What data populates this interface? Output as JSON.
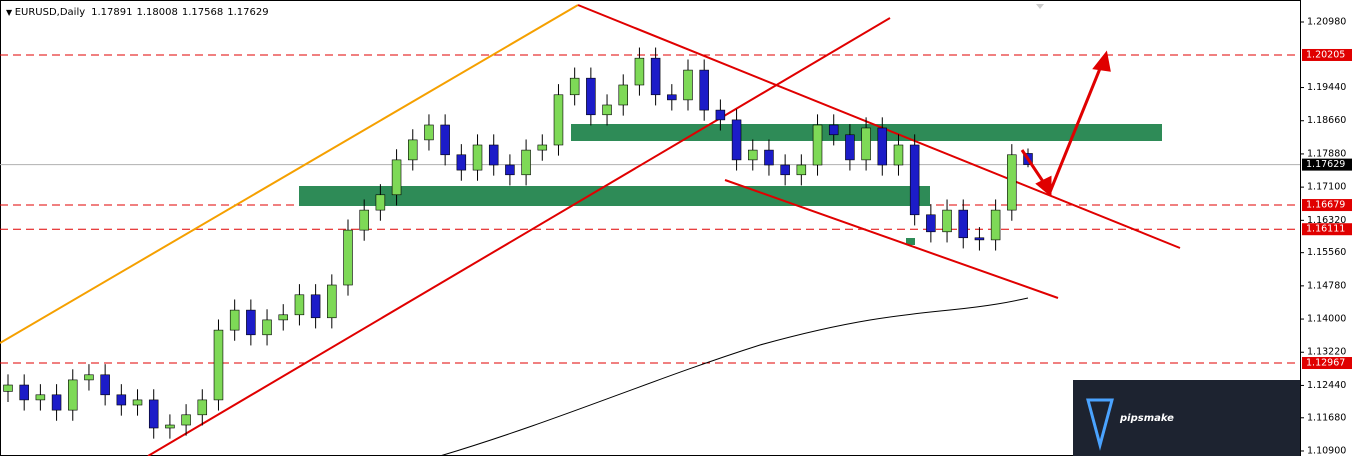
{
  "chart_data": {
    "type": "candlestick",
    "title": "EURUSD,Daily",
    "header_ohlc": [
      1.17891,
      1.18008,
      1.17568,
      1.17629
    ],
    "up_color": "#7ed957",
    "down_color": "#1c1cc8",
    "level_color": "#e00000",
    "ylim": [
      1.10782,
      1.21497
    ],
    "yticks": [
      {
        "value": 1.2098,
        "label": "1.20980"
      },
      {
        "value": 1.1944,
        "label": "1.19440"
      },
      {
        "value": 1.1866,
        "label": "1.18660"
      },
      {
        "value": 1.1788,
        "label": "1.17880"
      },
      {
        "value": 1.171,
        "label": "1.17100"
      },
      {
        "value": 1.1632,
        "label": "1.16320"
      },
      {
        "value": 1.1556,
        "label": "1.15560"
      },
      {
        "value": 1.1478,
        "label": "1.14780"
      },
      {
        "value": 1.14,
        "label": "1.14000"
      },
      {
        "value": 1.1322,
        "label": "1.13220"
      },
      {
        "value": 1.1244,
        "label": "1.12440"
      },
      {
        "value": 1.1168,
        "label": "1.11680"
      },
      {
        "value": 1.109,
        "label": "1.10900"
      }
    ],
    "levels": [
      1.20205,
      1.16679,
      1.16111,
      1.12967
    ],
    "current_price": 1.17629,
    "open": [
      1.123,
      1.1245,
      1.121,
      1.1222,
      1.1186,
      1.1257,
      1.1269,
      1.1222,
      1.1198,
      1.121,
      1.1144,
      1.1151,
      1.1175,
      1.121,
      1.1374,
      1.1421,
      1.1363,
      1.1398,
      1.141,
      1.1457,
      1.1403,
      1.148,
      1.1609,
      1.1656,
      1.1692,
      1.1774,
      1.1821,
      1.1856,
      1.1786,
      1.175,
      1.1809,
      1.1762,
      1.1739,
      1.1797,
      1.1809,
      1.1927,
      1.1966,
      1.188,
      1.1903,
      1.195,
      1.2013,
      1.1927,
      1.1915,
      1.1985,
      1.1891,
      1.1868,
      1.1774,
      1.1797,
      1.1762,
      1.1739,
      1.1762,
      1.1856,
      1.1833,
      1.1774,
      1.1849,
      1.1762,
      1.1809,
      1.1645,
      1.1605,
      1.1656,
      1.1591,
      1.1586,
      1.1656,
      1.17891
    ],
    "high": [
      1.127,
      1.127,
      1.1247,
      1.1247,
      1.1282,
      1.1294,
      1.1294,
      1.1247,
      1.1235,
      1.1235,
      1.1176,
      1.12,
      1.1235,
      1.1399,
      1.1446,
      1.1446,
      1.1423,
      1.1435,
      1.1482,
      1.1482,
      1.1505,
      1.1634,
      1.1681,
      1.1717,
      1.1799,
      1.1846,
      1.1881,
      1.1881,
      1.1811,
      1.1834,
      1.1834,
      1.1787,
      1.1822,
      1.1834,
      1.1952,
      1.1991,
      1.1991,
      1.1928,
      1.1975,
      1.2038,
      1.2038,
      1.1952,
      1.201,
      1.201,
      1.1916,
      1.1893,
      1.1822,
      1.1822,
      1.1787,
      1.1787,
      1.1881,
      1.1881,
      1.1858,
      1.1874,
      1.1874,
      1.1834,
      1.1834,
      1.167,
      1.1681,
      1.1681,
      1.1616,
      1.1681,
      1.1811,
      1.18008
    ],
    "low": [
      1.1205,
      1.1185,
      1.1185,
      1.1161,
      1.1161,
      1.1232,
      1.1197,
      1.1173,
      1.1173,
      1.1119,
      1.1119,
      1.1126,
      1.115,
      1.1185,
      1.1349,
      1.1338,
      1.1338,
      1.1373,
      1.1385,
      1.1378,
      1.1378,
      1.1455,
      1.1584,
      1.1631,
      1.1667,
      1.1749,
      1.1796,
      1.1761,
      1.1725,
      1.1725,
      1.1737,
      1.1714,
      1.1714,
      1.1772,
      1.1784,
      1.1902,
      1.1855,
      1.1855,
      1.1878,
      1.1925,
      1.1902,
      1.189,
      1.189,
      1.1866,
      1.1843,
      1.1749,
      1.1749,
      1.1737,
      1.1714,
      1.1714,
      1.1737,
      1.1808,
      1.1749,
      1.1749,
      1.1737,
      1.1737,
      1.162,
      1.158,
      1.158,
      1.1566,
      1.1561,
      1.1561,
      1.1631,
      1.17568
    ],
    "close": [
      1.1245,
      1.121,
      1.1222,
      1.1186,
      1.1257,
      1.1269,
      1.1222,
      1.1198,
      1.121,
      1.1144,
      1.1151,
      1.1175,
      1.121,
      1.1374,
      1.1421,
      1.1363,
      1.1398,
      1.141,
      1.1457,
      1.1403,
      1.148,
      1.1609,
      1.1656,
      1.1692,
      1.1774,
      1.1821,
      1.1856,
      1.1786,
      1.175,
      1.1809,
      1.1762,
      1.1739,
      1.1797,
      1.1809,
      1.1927,
      1.1966,
      1.188,
      1.1903,
      1.195,
      1.2013,
      1.1927,
      1.1915,
      1.1985,
      1.1891,
      1.1868,
      1.1774,
      1.1797,
      1.1762,
      1.1739,
      1.1762,
      1.1856,
      1.1833,
      1.1774,
      1.1849,
      1.1762,
      1.1809,
      1.1645,
      1.1605,
      1.1656,
      1.1591,
      1.1586,
      1.1656,
      1.1786,
      1.17629
    ],
    "logo_text": "pipsmake"
  }
}
